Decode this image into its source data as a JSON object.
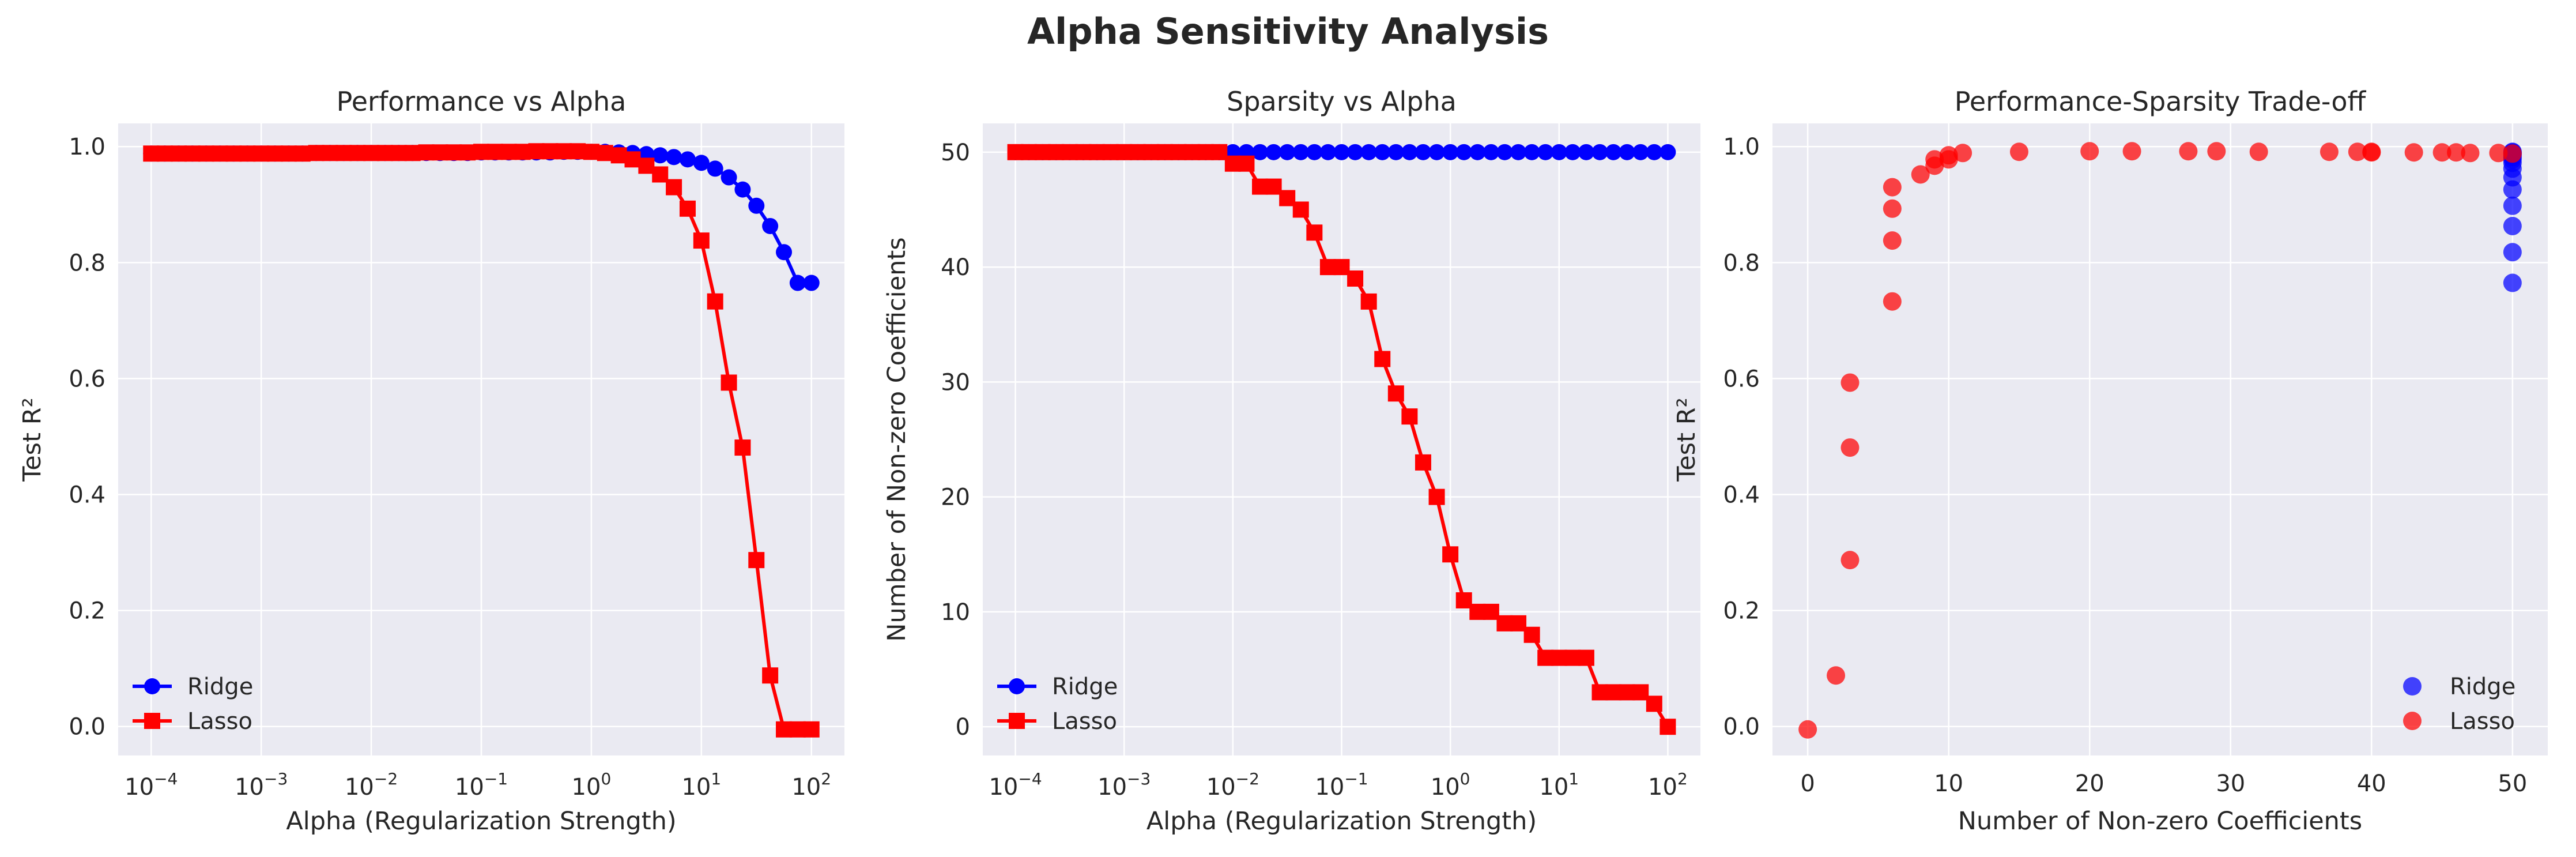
{
  "figure": {
    "title": "Alpha Sensitivity Analysis"
  },
  "colors": {
    "ridge": "#0000ff",
    "lasso": "#ff0000",
    "panel_bg": "#eaeaf2",
    "grid": "#ffffff"
  },
  "chart_data": [
    {
      "type": "line",
      "title": "Performance vs Alpha",
      "xlabel": "Alpha (Regularization Strength)",
      "ylabel": "Test R²",
      "xscale": "log",
      "xlim": [
        0.0001,
        100
      ],
      "ylim": [
        -0.05,
        1.04
      ],
      "xtick_exponents": [
        "−4",
        "−3",
        "−2",
        "−1",
        "0",
        "1",
        "2"
      ],
      "yticks": [
        "0.0",
        "0.2",
        "0.4",
        "0.6",
        "0.8",
        "1.0"
      ],
      "ytick_values": [
        0,
        0.2,
        0.4,
        0.6,
        0.8,
        1.0
      ],
      "legend": {
        "position": "lower-left",
        "entries": [
          "Ridge",
          "Lasso"
        ]
      },
      "grid": true,
      "x": [
        0.0001,
        0.000133,
        0.000178,
        0.000237,
        0.000316,
        0.000422,
        0.000562,
        0.00075,
        0.001,
        0.001334,
        0.001778,
        0.002371,
        0.003162,
        0.004217,
        0.005623,
        0.007499,
        0.01,
        0.013335,
        0.017783,
        0.023714,
        0.031623,
        0.04217,
        0.056234,
        0.074989,
        0.1,
        0.133352,
        0.177828,
        0.237137,
        0.316228,
        0.421697,
        0.562341,
        0.749894,
        1,
        1.333521,
        1.778279,
        2.371374,
        3.162278,
        4.216965,
        5.623413,
        7.498942,
        10,
        13.335214,
        17.782794,
        23.713737,
        31.622777,
        42.16965,
        56.234133,
        74.989421,
        100
      ],
      "series": [
        {
          "name": "Ridge",
          "marker": "circle",
          "values": [
            0.988,
            0.988,
            0.988,
            0.988,
            0.988,
            0.988,
            0.988,
            0.988,
            0.988,
            0.988,
            0.988,
            0.988,
            0.989,
            0.989,
            0.989,
            0.989,
            0.989,
            0.989,
            0.989,
            0.989,
            0.989,
            0.989,
            0.989,
            0.989,
            0.99,
            0.99,
            0.99,
            0.99,
            0.99,
            0.99,
            0.991,
            0.991,
            0.991,
            0.991,
            0.99,
            0.989,
            0.987,
            0.985,
            0.982,
            0.978,
            0.972,
            0.962,
            0.947,
            0.926,
            0.898,
            0.863,
            0.818,
            0.765,
            0.765
          ]
        },
        {
          "name": "Lasso",
          "marker": "square",
          "values": [
            0.988,
            0.988,
            0.988,
            0.988,
            0.988,
            0.988,
            0.988,
            0.988,
            0.988,
            0.988,
            0.988,
            0.988,
            0.989,
            0.989,
            0.989,
            0.989,
            0.989,
            0.989,
            0.989,
            0.989,
            0.99,
            0.99,
            0.99,
            0.99,
            0.991,
            0.991,
            0.991,
            0.991,
            0.992,
            0.992,
            0.992,
            0.992,
            0.991,
            0.989,
            0.985,
            0.978,
            0.967,
            0.952,
            0.93,
            0.893,
            0.838,
            0.733,
            0.593,
            0.481,
            0.287,
            0.088,
            -0.005,
            -0.005,
            -0.005
          ]
        }
      ]
    },
    {
      "type": "line",
      "title": "Sparsity vs Alpha",
      "xlabel": "Alpha (Regularization Strength)",
      "ylabel": "Number of Non-zero Coefficients",
      "xscale": "log",
      "xlim": [
        0.0001,
        100
      ],
      "ylim": [
        -2.5,
        52.5
      ],
      "xtick_exponents": [
        "−4",
        "−3",
        "−2",
        "−1",
        "0",
        "1",
        "2"
      ],
      "yticks": [
        "0",
        "10",
        "20",
        "30",
        "40",
        "50"
      ],
      "ytick_values": [
        0,
        10,
        20,
        30,
        40,
        50
      ],
      "legend": {
        "position": "lower-left",
        "entries": [
          "Ridge",
          "Lasso"
        ]
      },
      "grid": true,
      "x": [
        0.0001,
        0.000133,
        0.000178,
        0.000237,
        0.000316,
        0.000422,
        0.000562,
        0.00075,
        0.001,
        0.001334,
        0.001778,
        0.002371,
        0.003162,
        0.004217,
        0.005623,
        0.007499,
        0.01,
        0.013335,
        0.017783,
        0.023714,
        0.031623,
        0.04217,
        0.056234,
        0.074989,
        0.1,
        0.133352,
        0.177828,
        0.237137,
        0.316228,
        0.421697,
        0.562341,
        0.749894,
        1,
        1.333521,
        1.778279,
        2.371374,
        3.162278,
        4.216965,
        5.623413,
        7.498942,
        10,
        13.335214,
        17.782794,
        23.713737,
        31.622777,
        42.16965,
        56.234133,
        74.989421,
        100
      ],
      "series": [
        {
          "name": "Ridge",
          "marker": "circle",
          "values": [
            50,
            50,
            50,
            50,
            50,
            50,
            50,
            50,
            50,
            50,
            50,
            50,
            50,
            50,
            50,
            50,
            50,
            50,
            50,
            50,
            50,
            50,
            50,
            50,
            50,
            50,
            50,
            50,
            50,
            50,
            50,
            50,
            50,
            50,
            50,
            50,
            50,
            50,
            50,
            50,
            50,
            50,
            50,
            50,
            50,
            50,
            50,
            50,
            50
          ]
        },
        {
          "name": "Lasso",
          "marker": "square",
          "values": [
            50,
            50,
            50,
            50,
            50,
            50,
            50,
            50,
            50,
            50,
            50,
            50,
            50,
            50,
            50,
            50,
            49,
            49,
            47,
            47,
            46,
            45,
            43,
            40,
            40,
            39,
            37,
            32,
            29,
            27,
            23,
            20,
            15,
            11,
            10,
            10,
            9,
            9,
            8,
            6,
            6,
            6,
            6,
            3,
            3,
            3,
            3,
            2,
            0
          ]
        }
      ]
    },
    {
      "type": "scatter",
      "title": "Performance-Sparsity Trade-off",
      "xlabel": "Number of Non-zero Coefficients",
      "ylabel": "Test R²",
      "xlim": [
        -2.5,
        52.5
      ],
      "ylim": [
        -0.05,
        1.04
      ],
      "xticks": [
        "0",
        "10",
        "20",
        "30",
        "40",
        "50"
      ],
      "xtick_values": [
        0,
        10,
        20,
        30,
        40,
        50
      ],
      "yticks": [
        "0.0",
        "0.2",
        "0.4",
        "0.6",
        "0.8",
        "1.0"
      ],
      "ytick_values": [
        0,
        0.2,
        0.4,
        0.6,
        0.8,
        1.0
      ],
      "legend": {
        "position": "lower-right",
        "entries": [
          "Ridge",
          "Lasso"
        ]
      },
      "grid": true,
      "series": [
        {
          "name": "Ridge",
          "x": [
            50,
            50,
            50,
            50,
            50,
            50,
            50,
            50,
            50,
            50,
            50,
            50,
            50,
            50,
            50,
            50
          ],
          "y": [
            0.988,
            0.989,
            0.99,
            0.991,
            0.987,
            0.982,
            0.972,
            0.962,
            0.947,
            0.926,
            0.898,
            0.863,
            0.818,
            0.765,
            0.985,
            0.978
          ]
        },
        {
          "name": "Lasso",
          "x": [
            50,
            49,
            47,
            46,
            45,
            43,
            40,
            40,
            39,
            37,
            32,
            29,
            27,
            23,
            20,
            15,
            11,
            10,
            10,
            9,
            9,
            8,
            6,
            6,
            6,
            6,
            3,
            3,
            3,
            2,
            0
          ],
          "y": [
            0.988,
            0.989,
            0.989,
            0.99,
            0.99,
            0.99,
            0.991,
            0.99,
            0.991,
            0.991,
            0.991,
            0.992,
            0.992,
            0.992,
            0.992,
            0.991,
            0.989,
            0.985,
            0.978,
            0.967,
            0.978,
            0.952,
            0.93,
            0.893,
            0.838,
            0.733,
            0.593,
            0.481,
            0.287,
            0.088,
            -0.005
          ]
        }
      ]
    }
  ]
}
